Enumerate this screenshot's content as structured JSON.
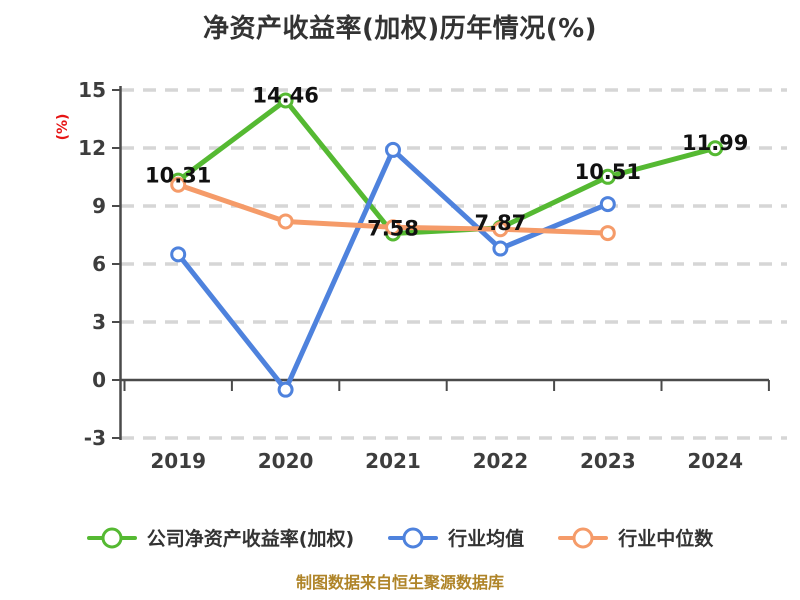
{
  "title": "净资产收益率(加权)历年情况(%)",
  "footer": "制图数据来自恒生聚源数据库",
  "colors": {
    "title_text": "#333333",
    "axis_text": "#3d3d3d",
    "axis_line": "#4a4a4a",
    "grid_line": "#d6d6d6",
    "unit_label": "#e61414",
    "legend_text": "#333333",
    "footer_text": "#af8428",
    "value_label": "#111111",
    "company": "#55b932",
    "industry_avg": "#4e82dd",
    "industry_median": "#f59b69"
  },
  "chart_data": {
    "type": "line",
    "title": "净资产收益率(加权)历年情况(%)",
    "xlabel": "",
    "ylabel": "(%)",
    "categories": [
      "2019",
      "2020",
      "2021",
      "2022",
      "2023",
      "2024"
    ],
    "series": [
      {
        "name": "公司净资产收益率(加权)",
        "color": "#55b932",
        "values": [
          10.31,
          14.46,
          7.58,
          7.87,
          10.51,
          11.99
        ],
        "value_labels": [
          "10.31",
          "14.46",
          "7.58",
          "7.87",
          "10.51",
          "11.99"
        ]
      },
      {
        "name": "行业均值",
        "color": "#4e82dd",
        "values": [
          6.5,
          -0.5,
          11.9,
          6.8,
          9.1,
          null
        ],
        "value_labels": null
      },
      {
        "name": "行业中位数",
        "color": "#f59b69",
        "values": [
          10.1,
          8.2,
          7.9,
          7.8,
          7.6,
          null
        ],
        "value_labels": null
      }
    ],
    "yticks": [
      15,
      12,
      9,
      6,
      3,
      0,
      -3
    ],
    "ylim": [
      -3,
      15
    ],
    "grid": "horizontal-dashed",
    "legend_position": "bottom",
    "marker": "circle-white-fill"
  }
}
